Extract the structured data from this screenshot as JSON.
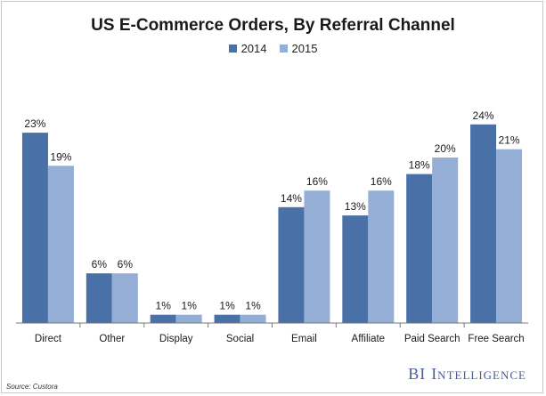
{
  "chart_data": {
    "type": "bar",
    "title": "US E-Commerce Orders, By Referral Channel",
    "categories": [
      "Direct",
      "Other",
      "Display",
      "Social",
      "Email",
      "Affiliate",
      "Paid Search",
      "Free Search"
    ],
    "series": [
      {
        "name": "2014",
        "values": [
          23,
          6,
          1,
          1,
          14,
          13,
          18,
          24
        ],
        "labels": [
          "23%",
          "6%",
          "1%",
          "1%",
          "14%",
          "13%",
          "18%",
          "24%"
        ]
      },
      {
        "name": "2015",
        "values": [
          19,
          6,
          1,
          1,
          16,
          16,
          20,
          21
        ],
        "labels": [
          "19%",
          "6%",
          "1%",
          "1%",
          "16%",
          "16%",
          "20%",
          "21%"
        ]
      }
    ],
    "ylim": [
      0,
      25
    ],
    "xlabel": "",
    "ylabel": "",
    "grid": false,
    "legend_position": "top-center"
  },
  "colors": {
    "series_2014": "#4a70a8",
    "series_2015": "#95aed6",
    "axis": "#777777"
  },
  "source_text": "Source: Custora",
  "brand": {
    "bi": "BI",
    "intelligence": "Intelligence"
  }
}
